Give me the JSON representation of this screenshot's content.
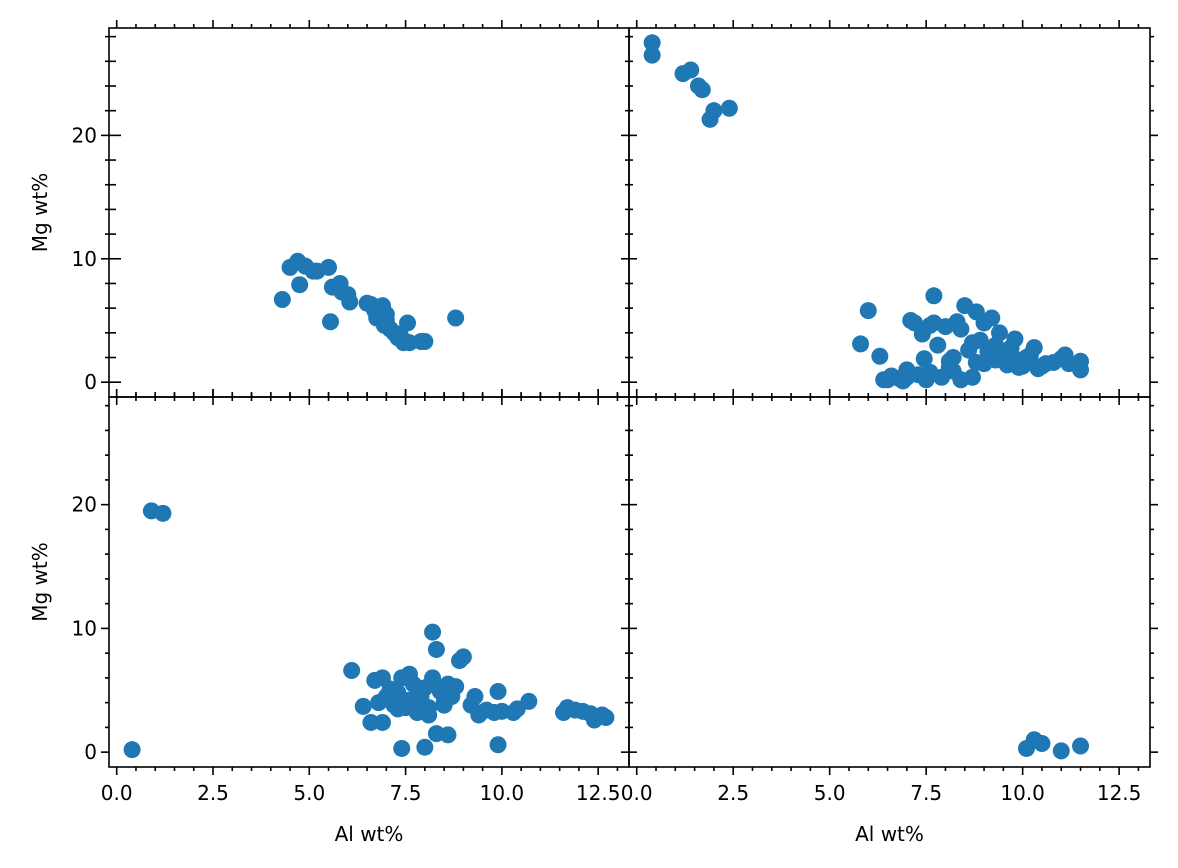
{
  "chart_data": [
    {
      "type": "scatter",
      "panel": "top-left",
      "xlabel": "",
      "ylabel": "Mg wt%",
      "xlim": [
        -0.2,
        13.3
      ],
      "ylim": [
        -1.2,
        28.7
      ],
      "xticks": [
        0.0,
        2.5,
        5.0,
        7.5,
        10.0,
        12.5
      ],
      "yticks": [
        0,
        10,
        20
      ],
      "color": "#1f77b4",
      "series": [
        {
          "x": [
            4.3,
            4.5,
            4.7,
            4.75,
            4.9,
            5.1,
            5.2,
            5.5,
            5.55,
            5.6,
            5.8,
            5.85,
            6.0,
            6.05,
            6.5,
            6.6,
            6.7,
            6.75,
            6.9,
            6.95,
            7.0,
            7.1,
            7.2,
            7.3,
            7.4,
            7.45,
            7.5,
            7.55,
            7.6,
            7.9,
            8.0,
            8.8,
            7.0,
            6.8,
            7.35
          ],
          "y": [
            6.7,
            9.3,
            9.8,
            7.9,
            9.4,
            9.0,
            9.0,
            9.3,
            4.9,
            7.7,
            8.0,
            7.3,
            7.1,
            6.5,
            6.4,
            6.3,
            5.8,
            5.2,
            6.2,
            4.6,
            5.0,
            4.3,
            4.0,
            3.6,
            3.4,
            3.2,
            3.3,
            4.8,
            3.2,
            3.3,
            3.3,
            5.2,
            5.5,
            5.9,
            3.9
          ]
        }
      ]
    },
    {
      "type": "scatter",
      "panel": "top-right",
      "xlabel": "",
      "ylabel": "",
      "xlim": [
        -0.2,
        13.3
      ],
      "ylim": [
        -1.2,
        28.7
      ],
      "xticks": [
        0.0,
        2.5,
        5.0,
        7.5,
        10.0,
        12.5
      ],
      "yticks": [
        0,
        10,
        20
      ],
      "color": "#1f77b4",
      "series": [
        {
          "x": [
            0.4,
            0.4,
            1.2,
            1.4,
            1.6,
            1.7,
            1.9,
            2.0,
            2.4,
            5.8,
            6.0,
            6.3,
            6.5,
            6.8,
            7.0,
            7.1,
            7.2,
            7.4,
            7.45,
            7.6,
            7.7,
            7.7,
            7.8,
            8.0,
            8.1,
            8.2,
            8.3,
            8.4,
            8.5,
            8.6,
            8.7,
            8.8,
            8.9,
            9.0,
            9.1,
            9.2,
            9.3,
            9.4,
            9.5,
            9.6,
            9.7,
            9.8,
            9.9,
            10.0,
            10.2,
            10.3,
            10.4,
            10.6,
            10.8,
            11.0,
            11.1,
            11.2,
            11.5,
            11.5,
            6.4,
            6.6,
            6.9,
            7.0,
            7.3,
            7.5,
            7.9,
            8.1,
            8.4,
            8.7,
            9.0,
            9.3,
            9.6,
            9.9,
            10.1,
            10.5,
            7.6,
            8.2,
            8.8,
            9.4,
            10.0
          ],
          "y": [
            27.5,
            26.5,
            25.0,
            25.3,
            24.0,
            23.7,
            21.3,
            22.0,
            22.2,
            3.1,
            5.8,
            2.1,
            0.2,
            0.3,
            0.4,
            5.0,
            4.8,
            3.9,
            1.9,
            4.6,
            7.0,
            4.8,
            3.0,
            4.5,
            1.7,
            2.0,
            4.9,
            4.3,
            6.2,
            2.6,
            3.2,
            5.7,
            3.4,
            4.8,
            2.5,
            5.2,
            3.0,
            4.0,
            2.0,
            1.6,
            2.8,
            3.5,
            1.8,
            1.3,
            2.2,
            2.8,
            1.1,
            1.5,
            1.6,
            1.9,
            2.2,
            1.5,
            1.7,
            1.0,
            0.2,
            0.5,
            0.1,
            1.0,
            0.6,
            0.2,
            0.4,
            1.2,
            0.2,
            0.4,
            1.5,
            1.8,
            1.4,
            1.2,
            2.0,
            1.3,
            0.8,
            0.9,
            1.6,
            2.4,
            1.7
          ]
        }
      ]
    },
    {
      "type": "scatter",
      "panel": "bottom-left",
      "xlabel": "Al wt%",
      "ylabel": "Mg wt%",
      "xlim": [
        -0.2,
        13.3
      ],
      "ylim": [
        -1.2,
        28.7
      ],
      "xticks": [
        0.0,
        2.5,
        5.0,
        7.5,
        10.0,
        12.5
      ],
      "yticks": [
        0,
        10,
        20
      ],
      "color": "#1f77b4",
      "series": [
        {
          "x": [
            0.4,
            0.9,
            1.2,
            6.1,
            6.4,
            6.6,
            6.7,
            6.8,
            6.9,
            7.0,
            7.1,
            7.2,
            7.3,
            7.4,
            7.5,
            7.6,
            7.7,
            7.8,
            7.9,
            8.0,
            8.1,
            8.2,
            8.2,
            8.3,
            8.4,
            8.5,
            8.6,
            8.7,
            8.8,
            8.9,
            9.0,
            9.2,
            9.3,
            9.4,
            9.6,
            9.8,
            9.9,
            9.9,
            10.0,
            10.3,
            10.4,
            10.7,
            11.6,
            11.7,
            11.9,
            12.1,
            12.3,
            12.4,
            12.6,
            12.7,
            7.4,
            8.0,
            8.6,
            6.9,
            7.3,
            7.8,
            8.3,
            7.1,
            7.6,
            8.1,
            8.5
          ],
          "y": [
            0.2,
            19.5,
            19.3,
            6.6,
            3.7,
            2.4,
            5.8,
            4.0,
            6.0,
            4.5,
            5.0,
            3.8,
            4.8,
            6.0,
            3.6,
            6.3,
            5.5,
            3.4,
            4.5,
            5.2,
            3.0,
            9.7,
            6.0,
            8.3,
            4.9,
            3.8,
            5.5,
            4.5,
            5.3,
            7.4,
            7.7,
            3.8,
            4.5,
            3.0,
            3.4,
            3.2,
            4.9,
            0.6,
            3.3,
            3.2,
            3.5,
            4.1,
            3.2,
            3.6,
            3.4,
            3.3,
            3.1,
            2.6,
            3.0,
            2.8,
            0.3,
            0.4,
            1.4,
            2.4,
            3.5,
            3.2,
            1.5,
            5.1,
            4.2,
            3.6,
            4.0
          ]
        }
      ]
    },
    {
      "type": "scatter",
      "panel": "bottom-right",
      "xlabel": "Al wt%",
      "ylabel": "",
      "xlim": [
        -0.2,
        13.3
      ],
      "ylim": [
        -1.2,
        28.7
      ],
      "xticks": [
        0.0,
        2.5,
        5.0,
        7.5,
        10.0,
        12.5
      ],
      "yticks": [
        0,
        10,
        20
      ],
      "color": "#1f77b4",
      "series": [
        {
          "x": [
            10.1,
            10.3,
            10.5,
            11.0,
            11.5
          ],
          "y": [
            0.3,
            1.0,
            0.7,
            0.1,
            0.5
          ]
        }
      ]
    }
  ]
}
